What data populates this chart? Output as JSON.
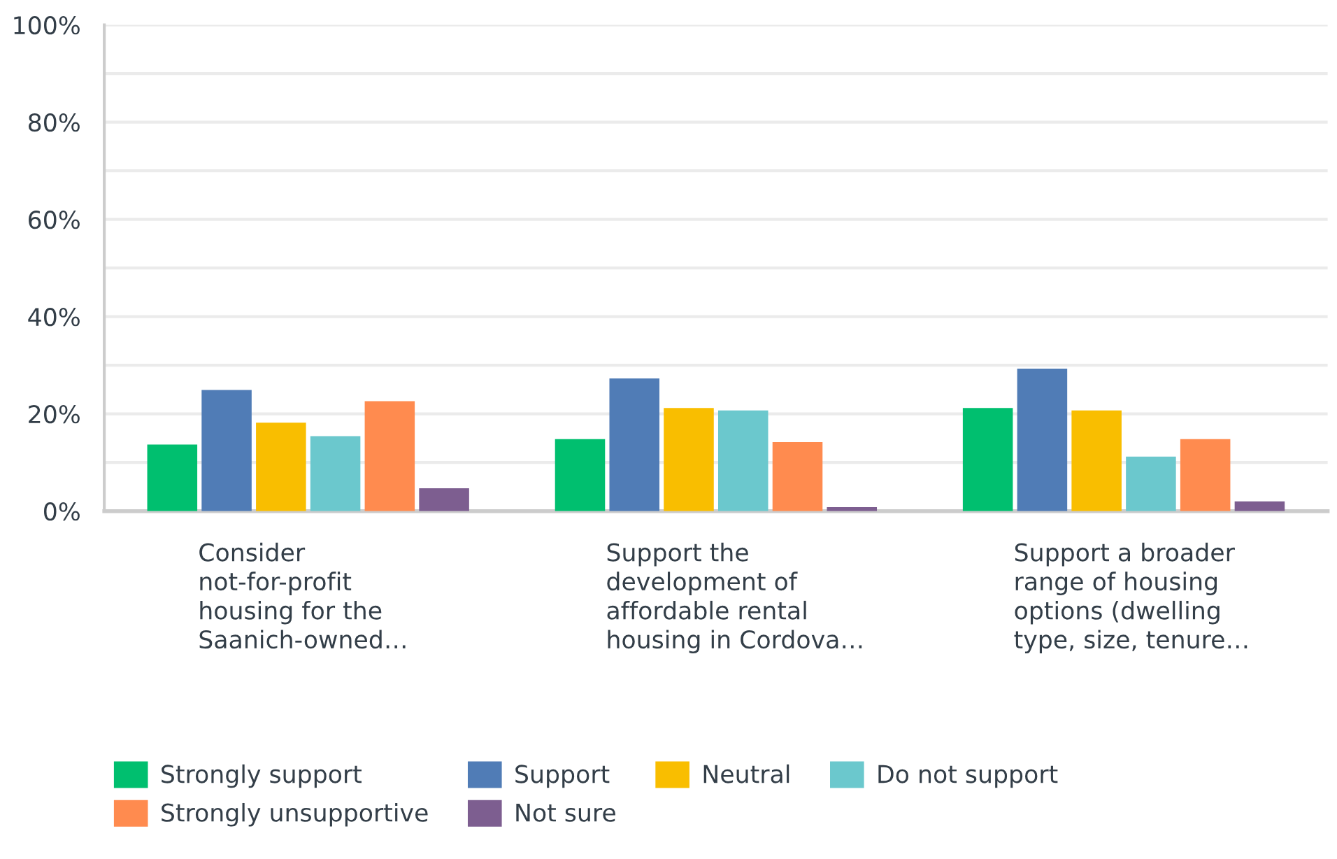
{
  "chart_data": {
    "type": "bar",
    "categories": [
      "Consider\nnot-for-profit\nhousing for the\nSaanich-owned…",
      "Support the\ndevelopment of\naffordable rental\nhousing in Cordova…",
      "Support a broader\nrange of housing\noptions (dwelling\ntype, size, tenure…"
    ],
    "series": [
      {
        "name": "Strongly support",
        "color": "#00bf6f",
        "values": [
          13.7,
          14.8,
          21.2
        ]
      },
      {
        "name": "Support",
        "color": "#507cb6",
        "values": [
          24.9,
          27.3,
          29.3
        ]
      },
      {
        "name": "Neutral",
        "color": "#f9be00",
        "values": [
          18.2,
          21.2,
          20.7
        ]
      },
      {
        "name": "Do not support",
        "color": "#6bc8cd",
        "values": [
          15.4,
          20.7,
          11.2
        ]
      },
      {
        "name": "Strongly unsupportive",
        "color": "#ff8b4f",
        "values": [
          22.6,
          14.2,
          14.8
        ]
      },
      {
        "name": "Not sure",
        "color": "#7d5e90",
        "values": [
          4.7,
          0.8,
          2.0
        ]
      }
    ],
    "ylim": [
      0,
      100
    ],
    "yticks": [
      {
        "value": 0,
        "label": "0%"
      },
      {
        "value": 10,
        "label": null
      },
      {
        "value": 20,
        "label": "20%"
      },
      {
        "value": 30,
        "label": null
      },
      {
        "value": 40,
        "label": "40%"
      },
      {
        "value": 50,
        "label": null
      },
      {
        "value": 60,
        "label": "60%"
      },
      {
        "value": 70,
        "label": null
      },
      {
        "value": 80,
        "label": "80%"
      },
      {
        "value": 90,
        "label": null
      },
      {
        "value": 100,
        "label": "100%"
      }
    ],
    "grid": "y",
    "legend": "bottom"
  }
}
